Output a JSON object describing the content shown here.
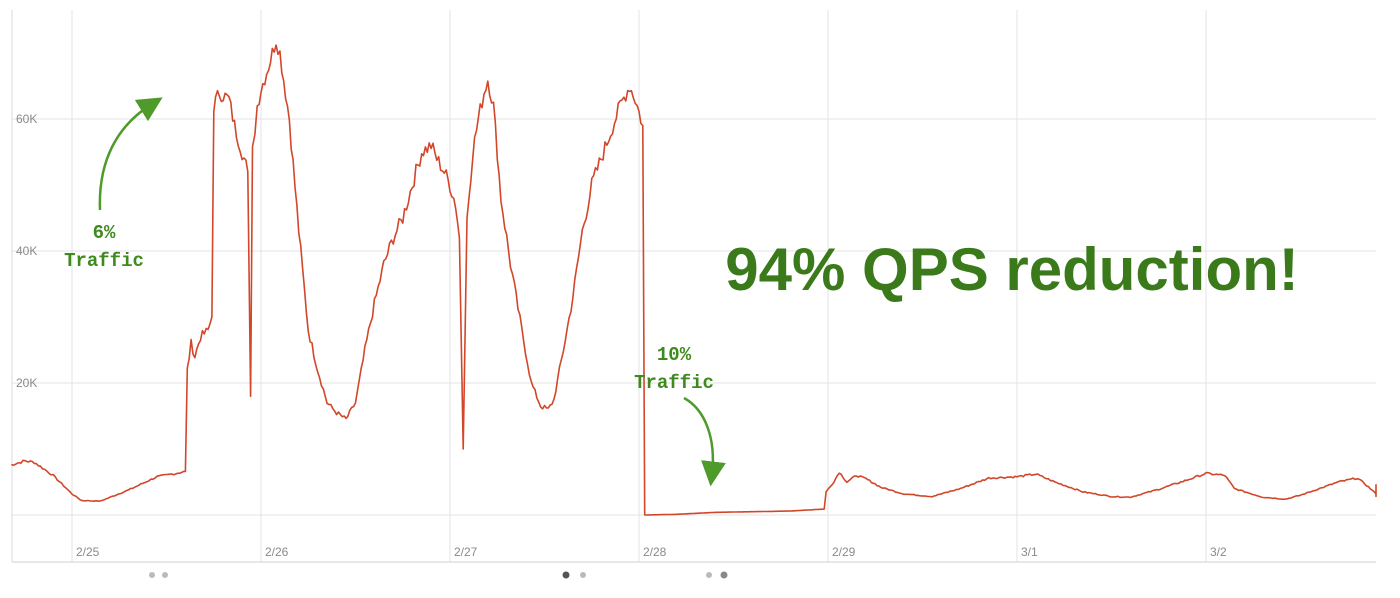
{
  "chart_data": {
    "type": "line",
    "title": "",
    "xlabel": "",
    "ylabel": "",
    "ylim": [
      0,
      75000
    ],
    "yticks": [
      {
        "value": 20000,
        "label": "20K"
      },
      {
        "value": 40000,
        "label": "40K"
      },
      {
        "value": 60000,
        "label": "60K"
      }
    ],
    "xticks": [
      {
        "value": 0,
        "label": "2/25"
      },
      {
        "value": 1,
        "label": "2/26"
      },
      {
        "value": 2,
        "label": "2/27"
      },
      {
        "value": 3,
        "label": "2/28"
      },
      {
        "value": 4,
        "label": "2/29"
      },
      {
        "value": 5,
        "label": "3/1"
      },
      {
        "value": 6,
        "label": "3/2"
      }
    ],
    "xlim": [
      -0.33,
      6.74
    ],
    "grid": true,
    "line_color": "#d2462a",
    "accent_color": "#3a7a1a",
    "series": [
      {
        "name": "",
        "points": [
          [
            -0.33,
            7500
          ],
          [
            -0.25,
            8200
          ],
          [
            -0.2,
            8000
          ],
          [
            -0.1,
            6000
          ],
          [
            0.0,
            3200
          ],
          [
            0.05,
            2200
          ],
          [
            0.15,
            2100
          ],
          [
            0.3,
            3800
          ],
          [
            0.45,
            5800
          ],
          [
            0.55,
            6300
          ],
          [
            0.6,
            6600
          ],
          [
            0.61,
            22000
          ],
          [
            0.63,
            26000
          ],
          [
            0.65,
            24000
          ],
          [
            0.68,
            27000
          ],
          [
            0.72,
            28000
          ],
          [
            0.74,
            30000
          ],
          [
            0.75,
            62000
          ],
          [
            0.78,
            64000
          ],
          [
            0.83,
            63000
          ],
          [
            0.86,
            59000
          ],
          [
            0.9,
            55000
          ],
          [
            0.93,
            52000
          ],
          [
            0.945,
            18000
          ],
          [
            0.955,
            55000
          ],
          [
            0.98,
            62000
          ],
          [
            1.0,
            64500
          ],
          [
            1.04,
            68000
          ],
          [
            1.07,
            71000
          ],
          [
            1.08,
            72000
          ],
          [
            1.1,
            70000
          ],
          [
            1.15,
            60000
          ],
          [
            1.2,
            43000
          ],
          [
            1.25,
            28000
          ],
          [
            1.3,
            22000
          ],
          [
            1.35,
            17000
          ],
          [
            1.4,
            15500
          ],
          [
            1.45,
            14500
          ],
          [
            1.5,
            17000
          ],
          [
            1.55,
            25000
          ],
          [
            1.6,
            32000
          ],
          [
            1.65,
            38000
          ],
          [
            1.7,
            42000
          ],
          [
            1.75,
            45000
          ],
          [
            1.8,
            50000
          ],
          [
            1.85,
            55000
          ],
          [
            1.9,
            56000
          ],
          [
            1.93,
            54000
          ],
          [
            1.97,
            52000
          ],
          [
            2.0,
            50000
          ],
          [
            2.03,
            47000
          ],
          [
            2.05,
            42000
          ],
          [
            2.07,
            10000
          ],
          [
            2.09,
            45000
          ],
          [
            2.12,
            55000
          ],
          [
            2.15,
            60000
          ],
          [
            2.18,
            64000
          ],
          [
            2.2,
            66000
          ],
          [
            2.23,
            62000
          ],
          [
            2.27,
            48000
          ],
          [
            2.32,
            38000
          ],
          [
            2.38,
            28000
          ],
          [
            2.43,
            20000
          ],
          [
            2.48,
            16500
          ],
          [
            2.52,
            16000
          ],
          [
            2.55,
            17500
          ],
          [
            2.6,
            25000
          ],
          [
            2.65,
            33000
          ],
          [
            2.7,
            43000
          ],
          [
            2.75,
            50000
          ],
          [
            2.8,
            54000
          ],
          [
            2.85,
            58000
          ],
          [
            2.9,
            62000
          ],
          [
            2.95,
            65000
          ],
          [
            2.98,
            63000
          ],
          [
            3.0,
            61000
          ],
          [
            3.02,
            59000
          ],
          [
            3.03,
            0
          ],
          [
            3.2,
            100
          ],
          [
            3.4,
            400
          ],
          [
            3.6,
            500
          ],
          [
            3.8,
            600
          ],
          [
            3.98,
            900
          ],
          [
            3.99,
            3500
          ],
          [
            4.03,
            5000
          ],
          [
            4.06,
            6500
          ],
          [
            4.1,
            5000
          ],
          [
            4.15,
            6000
          ],
          [
            4.2,
            5500
          ],
          [
            4.28,
            4200
          ],
          [
            4.4,
            3200
          ],
          [
            4.55,
            2800
          ],
          [
            4.7,
            4000
          ],
          [
            4.85,
            5600
          ],
          [
            5.0,
            5800
          ],
          [
            5.1,
            6200
          ],
          [
            5.2,
            5000
          ],
          [
            5.35,
            3500
          ],
          [
            5.5,
            2800
          ],
          [
            5.6,
            2700
          ],
          [
            5.75,
            3900
          ],
          [
            5.9,
            5300
          ],
          [
            6.0,
            6300
          ],
          [
            6.1,
            6000
          ],
          [
            6.15,
            4000
          ],
          [
            6.3,
            2700
          ],
          [
            6.42,
            2400
          ],
          [
            6.5,
            3000
          ],
          [
            6.6,
            4000
          ],
          [
            6.7,
            5000
          ],
          [
            6.8,
            5600
          ],
          [
            6.85,
            4500
          ],
          [
            6.9,
            3200
          ],
          [
            6.95,
            2800
          ],
          [
            7.0,
            3800
          ],
          [
            7.05,
            4500
          ],
          [
            7.1,
            3700
          ],
          [
            7.15,
            3200
          ]
        ]
      }
    ],
    "annotations": [
      {
        "line1": "6%",
        "line2": "Traffic"
      },
      {
        "line1": "10%",
        "line2": "Traffic"
      }
    ],
    "headline": "94% QPS reduction!"
  }
}
